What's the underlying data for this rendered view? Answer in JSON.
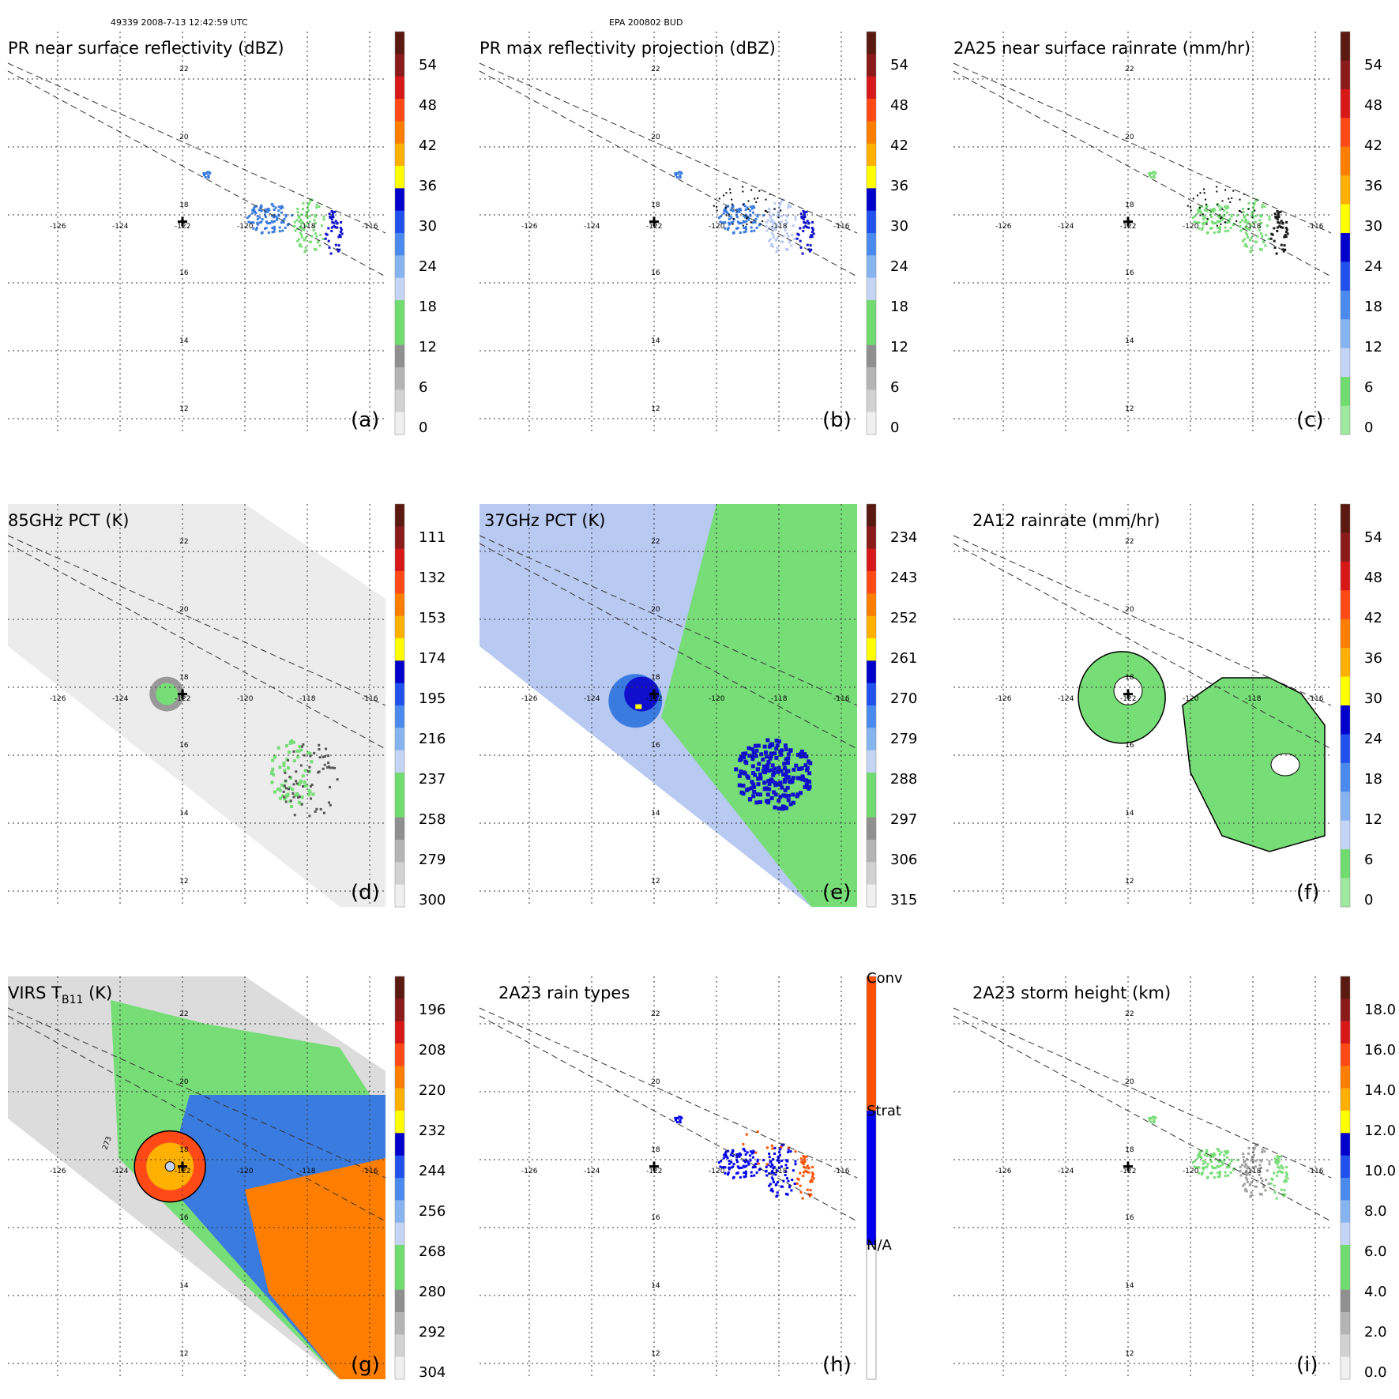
{
  "header": {
    "left": "49339 2008-7-13 12:42:59 UTC",
    "center": "EPA 200802 BUD"
  },
  "map": {
    "lon_ticks": [
      "-126",
      "-124",
      "-122",
      "-120",
      "-118",
      "-116"
    ],
    "lat_ticks": [
      "22",
      "20",
      "18",
      "16",
      "14",
      "12"
    ],
    "storm_center": {
      "lon": -122,
      "lat": 17.8
    }
  },
  "panels": [
    {
      "title": "PR near surface reflectivity (dBZ)",
      "letter": "(a)",
      "colorbar": [
        "54",
        "48",
        "42",
        "36",
        "30",
        "24",
        "18",
        "12",
        "6",
        "0"
      ]
    },
    {
      "title": "PR max reflectivity projection (dBZ)",
      "letter": "(b)",
      "colorbar": [
        "54",
        "48",
        "42",
        "36",
        "30",
        "24",
        "18",
        "12",
        "6",
        "0"
      ]
    },
    {
      "title": "2A25 near surface rainrate (mm/hr)",
      "letter": "(c)",
      "colorbar": [
        "54",
        "48",
        "42",
        "36",
        "30",
        "24",
        "18",
        "12",
        "6",
        "0"
      ]
    },
    {
      "title": "85GHz PCT (K)",
      "letter": "(d)",
      "colorbar": [
        "111",
        "132",
        "153",
        "174",
        "195",
        "216",
        "237",
        "258",
        "279",
        "300"
      ]
    },
    {
      "title": "37GHz PCT (K)",
      "letter": "(e)",
      "colorbar": [
        "234",
        "243",
        "252",
        "261",
        "270",
        "279",
        "288",
        "297",
        "306",
        "315"
      ]
    },
    {
      "title": "2A12 rainrate (mm/hr)",
      "letter": "(f)",
      "colorbar": [
        "54",
        "48",
        "42",
        "36",
        "30",
        "24",
        "18",
        "12",
        "6",
        "0"
      ]
    },
    {
      "title": "VIRS T",
      "title_sub": "B11",
      "title_suffix": " (K)",
      "letter": "(g)",
      "colorbar": [
        "196",
        "208",
        "220",
        "232",
        "244",
        "256",
        "268",
        "280",
        "292",
        "304"
      ],
      "contour_label": "273"
    },
    {
      "title": "2A23 rain types",
      "letter": "(h)",
      "colorbar": [
        "Conv",
        "Strat",
        "N/A"
      ]
    },
    {
      "title": "2A23 storm height (km)",
      "letter": "(i)",
      "colorbar": [
        "18.0",
        "16.0",
        "14.0",
        "12.0",
        "10.0",
        "8.0",
        "6.0",
        "4.0",
        "2.0",
        "0.0"
      ]
    }
  ],
  "colors": {
    "stratiform": "#0000ee",
    "convective": "#ff5000",
    "green": "#77dd77",
    "blue_dark": "#1010cc",
    "blue_mid": "#3a7be0",
    "blue_light": "#b8c9f2",
    "gray_swath": "#e6e6e6"
  },
  "colorbar_ramps": {
    "dbz": [
      "#5a1a10",
      "#8b1a1a",
      "#d81818",
      "#ff4a18",
      "#ff7e00",
      "#ffb000",
      "#ffff00",
      "#0000cc",
      "#2050ee",
      "#4a8aee",
      "#86b4f0",
      "#c4d4f4",
      "#70dc70",
      "#70dc70",
      "#909090",
      "#b4b4b4",
      "#d2d2d2",
      "#f0f0f0"
    ],
    "rain": [
      "#5a1a10",
      "#8b1a1a",
      "#d81818",
      "#ff4a18",
      "#ff7e00",
      "#ffb000",
      "#ffff00",
      "#0000cc",
      "#2050ee",
      "#4a8aee",
      "#86b4f0",
      "#c4d4f4",
      "#70dc70",
      "#a0e8a0"
    ],
    "pct": [
      "#5a1a10",
      "#8b1a1a",
      "#d81818",
      "#ff4a18",
      "#ff7e00",
      "#ffb000",
      "#ffff00",
      "#0000cc",
      "#2050ee",
      "#4a8aee",
      "#86b4f0",
      "#c4d4f4",
      "#70dc70",
      "#70dc70",
      "#909090",
      "#b4b4b4",
      "#d2d2d2",
      "#f0f0f0"
    ],
    "types": [
      "#ff5000",
      "#0000ee",
      "#ffffff"
    ]
  }
}
